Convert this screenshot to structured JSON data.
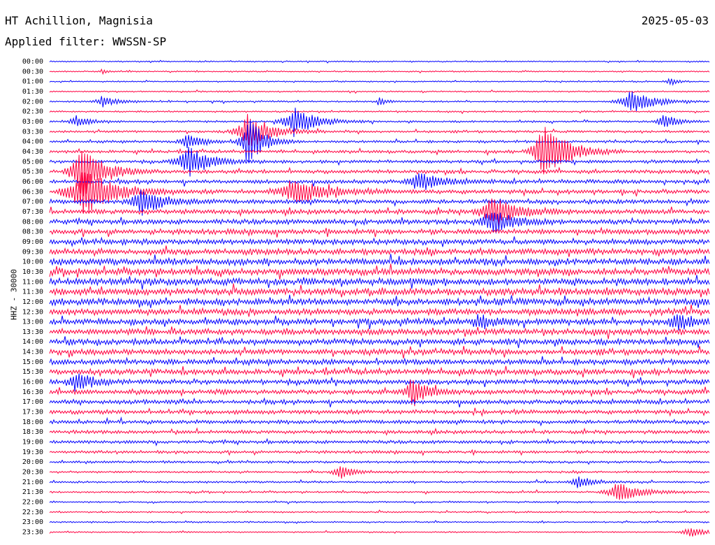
{
  "header": {
    "station": "HT Achillion, Magnisia",
    "date": "2025-05-03",
    "filter": "Applied filter: WWSSN-SP"
  },
  "axis": {
    "ylabel": "HHZ - 30000"
  },
  "chart_data": {
    "type": "line",
    "title": "HT Achillion, Magnisia",
    "subtitle": "Applied filter: WWSSN-SP",
    "ylabel": "HHZ - 30000",
    "row_labels": [
      "00:00",
      "00:30",
      "01:00",
      "01:30",
      "02:00",
      "02:30",
      "03:00",
      "03:30",
      "04:00",
      "04:30",
      "05:00",
      "05:30",
      "06:00",
      "06:30",
      "07:00",
      "07:30",
      "08:00",
      "08:30",
      "09:00",
      "09:30",
      "10:00",
      "10:30",
      "11:00",
      "11:30",
      "12:00",
      "12:30",
      "13:00",
      "13:30",
      "14:00",
      "14:30",
      "15:00",
      "15:30",
      "16:00",
      "16:30",
      "17:00",
      "17:30",
      "18:00",
      "18:30",
      "19:00",
      "19:30",
      "20:00",
      "20:30",
      "21:00",
      "21:30",
      "22:00",
      "22:30",
      "23:00",
      "23:30"
    ],
    "trace_colors": [
      "#0000ff",
      "#ff0040"
    ],
    "noise_level": [
      0.8,
      0.8,
      0.8,
      0.9,
      1.0,
      1.0,
      1.2,
      1.5,
      1.6,
      1.8,
      2.0,
      2.3,
      2.5,
      2.7,
      2.8,
      3.0,
      3.1,
      3.3,
      3.5,
      3.8,
      4.0,
      4.2,
      4.3,
      4.3,
      4.2,
      4.0,
      3.9,
      3.8,
      3.7,
      3.6,
      3.5,
      3.4,
      3.2,
      3.0,
      2.8,
      2.6,
      2.4,
      2.2,
      2.0,
      1.8,
      1.5,
      1.3,
      1.2,
      1.1,
      1.0,
      1.0,
      0.9,
      0.9
    ],
    "events": [
      {
        "row": 1,
        "t": 0.08,
        "amp": 3,
        "dur": 0.01
      },
      {
        "row": 2,
        "t": 0.94,
        "amp": 6,
        "dur": 0.01
      },
      {
        "row": 4,
        "t": 0.08,
        "amp": 8,
        "dur": 0.02
      },
      {
        "row": 4,
        "t": 0.5,
        "amp": 6,
        "dur": 0.01
      },
      {
        "row": 4,
        "t": 0.88,
        "amp": 18,
        "dur": 0.03
      },
      {
        "row": 6,
        "t": 0.04,
        "amp": 8,
        "dur": 0.02
      },
      {
        "row": 6,
        "t": 0.37,
        "amp": 22,
        "dur": 0.03
      },
      {
        "row": 6,
        "t": 0.93,
        "amp": 10,
        "dur": 0.02
      },
      {
        "row": 7,
        "t": 0.3,
        "amp": 25,
        "dur": 0.03
      },
      {
        "row": 8,
        "t": 0.21,
        "amp": 12,
        "dur": 0.02
      },
      {
        "row": 8,
        "t": 0.3,
        "amp": 40,
        "dur": 0.02
      },
      {
        "row": 9,
        "t": 0.75,
        "amp": 50,
        "dur": 0.03
      },
      {
        "row": 10,
        "t": 0.21,
        "amp": 22,
        "dur": 0.03
      },
      {
        "row": 11,
        "t": 0.05,
        "amp": 40,
        "dur": 0.03
      },
      {
        "row": 12,
        "t": 0.56,
        "amp": 14,
        "dur": 0.03
      },
      {
        "row": 13,
        "t": 0.05,
        "amp": 35,
        "dur": 0.04
      },
      {
        "row": 13,
        "t": 0.37,
        "amp": 20,
        "dur": 0.04
      },
      {
        "row": 14,
        "t": 0.14,
        "amp": 18,
        "dur": 0.03
      },
      {
        "row": 15,
        "t": 0.67,
        "amp": 25,
        "dur": 0.03
      },
      {
        "row": 16,
        "t": 0.67,
        "amp": 18,
        "dur": 0.03
      },
      {
        "row": 26,
        "t": 0.65,
        "amp": 10,
        "dur": 0.02
      },
      {
        "row": 26,
        "t": 0.95,
        "amp": 12,
        "dur": 0.02
      },
      {
        "row": 32,
        "t": 0.04,
        "amp": 15,
        "dur": 0.02
      },
      {
        "row": 33,
        "t": 0.55,
        "amp": 22,
        "dur": 0.02
      },
      {
        "row": 41,
        "t": 0.44,
        "amp": 10,
        "dur": 0.02
      },
      {
        "row": 42,
        "t": 0.8,
        "amp": 9,
        "dur": 0.02
      },
      {
        "row": 43,
        "t": 0.86,
        "amp": 16,
        "dur": 0.03
      },
      {
        "row": 47,
        "t": 0.97,
        "amp": 8,
        "dur": 0.02
      }
    ]
  }
}
